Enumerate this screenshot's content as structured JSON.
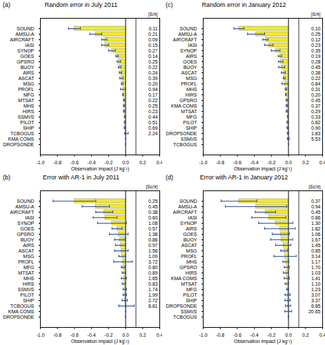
{
  "chart_data": [
    {
      "type": "bar",
      "orientation": "horizontal",
      "panel_label": "(a)",
      "title": "Random error in July 2011",
      "x_label": "Observation impact (J kg⁻¹)",
      "categories": [
        "SOUND",
        "AMSU-A",
        "AIRCRAFT",
        "IASI",
        "SYNOP",
        "GOES",
        "GPSRO",
        "BUOY",
        "AIRS",
        "ASCAT",
        "MSG",
        "PROFL",
        "MFG",
        "MTSAT",
        "MHS",
        "HIRS",
        "SSMI/S",
        "PILOT",
        "SHIP",
        "TCBOGUS",
        "KMA COMS",
        "DROPSONDE"
      ],
      "values": [
        -0.6,
        -0.35,
        -0.25,
        -0.24,
        -0.16,
        -0.1,
        -0.08,
        -0.07,
        -0.06,
        -0.05,
        -0.04,
        -0.03,
        -0.03,
        -0.02,
        -0.02,
        -0.02,
        -0.01,
        -0.01,
        -0.01,
        0.01,
        0,
        0
      ],
      "errors": [
        0.07,
        0.07,
        0.03,
        0.04,
        0.04,
        0.015,
        0.02,
        0.015,
        0.015,
        0.02,
        0.01,
        0.03,
        0.005,
        0.005,
        0.005,
        0.005,
        0.005,
        0.005,
        0.007,
        0.02,
        0,
        0
      ],
      "column_title": "|S/x̄|",
      "column_values": [
        0.11,
        0.21,
        0.09,
        0.15,
        0.27,
        0.14,
        0.25,
        0.22,
        0.24,
        0.39,
        0.2,
        0.94,
        0.17,
        0.22,
        0.25,
        0.23,
        0.44,
        0.51,
        0.69,
        2.24,
        null,
        null
      ],
      "color": "#f2e82e",
      "error_color": "#2f4f9f",
      "xlim": [
        -1.0,
        0.4
      ],
      "xticks": [
        {
          "value": -1.0,
          "label": "-1.0"
        },
        {
          "value": -0.8,
          "label": "-0.8"
        },
        {
          "value": -0.6,
          "label": "-0.6"
        },
        {
          "value": -0.4,
          "label": "-0.4"
        },
        {
          "value": -0.2,
          "label": "-0.2"
        },
        {
          "value": 0,
          "label": "0.0"
        },
        {
          "value": 0.2,
          "label": "0.2"
        },
        {
          "value": 0.4,
          "label": "0.4"
        }
      ]
    },
    {
      "type": "bar",
      "orientation": "horizontal",
      "panel_label": "(b)",
      "title": "Error with AR-1 in July 2011",
      "x_label": "Observation impact (J kg⁻¹)",
      "categories": [
        "SOUND",
        "AMSU-A",
        "AIRCRAFT",
        "IASI",
        "SYNOP",
        "GOES",
        "GPSRO",
        "BUOY",
        "AIRS",
        "ASCAT",
        "MSG",
        "PROFL",
        "MFG",
        "MTSAT",
        "MHS",
        "HIRS",
        "SSMI/S",
        "PILOT",
        "SHIP",
        "TCBOGUS",
        "KMA COMS",
        "DROPSONDE"
      ],
      "values": [
        -0.6,
        -0.35,
        -0.25,
        -0.24,
        -0.16,
        -0.1,
        -0.08,
        -0.07,
        -0.06,
        -0.05,
        -0.04,
        -0.03,
        -0.03,
        -0.02,
        -0.02,
        -0.02,
        -0.01,
        -0.01,
        -0.01,
        0.01,
        0,
        0
      ],
      "errors": [
        0.25,
        0.16,
        0.1,
        0.14,
        0.17,
        0.06,
        0.11,
        0.06,
        0.06,
        0.08,
        0.04,
        0.11,
        0.02,
        0.02,
        0.03,
        0.02,
        0.02,
        0.02,
        0.03,
        0.09,
        0,
        0
      ],
      "column_title": "|Sc/x̄|",
      "column_values": [
        0.25,
        0.45,
        0.38,
        0.6,
        1.08,
        0.57,
        1.38,
        0.86,
        0.97,
        1.56,
        1.09,
        3.72,
        0.8,
        0.89,
        1.65,
        0.83,
        1.74,
        1.99,
        2.72,
        8.81,
        null,
        null
      ],
      "color": "#f2e82e",
      "error_color": "#2f4f9f",
      "xlim": [
        -1.0,
        0.4
      ],
      "xticks": [
        {
          "value": -1.0,
          "label": "-1.0"
        },
        {
          "value": -0.8,
          "label": "-0.8"
        },
        {
          "value": -0.6,
          "label": "-0.6"
        },
        {
          "value": -0.4,
          "label": "-0.4"
        },
        {
          "value": -0.2,
          "label": "-0.2"
        },
        {
          "value": 0,
          "label": "0.0"
        },
        {
          "value": 0.2,
          "label": "0.2"
        },
        {
          "value": 0.4,
          "label": "0.4"
        }
      ]
    },
    {
      "type": "bar",
      "orientation": "horizontal",
      "panel_label": "(c)",
      "title": "Random error in January 2012",
      "x_label": "Observation impact (J kg⁻¹)",
      "categories": [
        "SOUND",
        "AMSU-A",
        "AIRCRAFT",
        "IASI",
        "SYNOP",
        "AIRS",
        "GOES",
        "BUOY",
        "ASCAT",
        "MSG",
        "PROFL",
        "MHS",
        "HIRS",
        "GPSRO",
        "KMA COMS",
        "MTSAT",
        "MFG",
        "PILOT",
        "SHIP",
        "DROPSONDE",
        "SSMI/S",
        "TCBOGUS"
      ],
      "values": [
        -0.58,
        -0.38,
        -0.27,
        -0.23,
        -0.15,
        -0.1,
        -0.09,
        -0.08,
        -0.06,
        -0.05,
        -0.04,
        -0.03,
        -0.03,
        -0.02,
        -0.02,
        -0.02,
        -0.01,
        -0.01,
        -0.01,
        -0.005,
        -0.002,
        0
      ],
      "errors": [
        0.06,
        0.1,
        0.03,
        0.05,
        0.05,
        0.02,
        0.025,
        0.036,
        0.023,
        0.011,
        0.034,
        0.009,
        0.006,
        0.009,
        0.007,
        0.006,
        0.003,
        0.008,
        0.009,
        0.009,
        0.011,
        0
      ],
      "column_title": "|S/x̄|",
      "column_values": [
        0.1,
        0.25,
        0.12,
        0.23,
        0.35,
        0.19,
        0.28,
        0.45,
        0.38,
        0.22,
        0.84,
        0.31,
        0.2,
        0.45,
        0.37,
        0.29,
        0.33,
        0.82,
        0.9,
        1.83,
        5.53,
        null
      ],
      "color": "#f2e82e",
      "error_color": "#2f4f9f",
      "xlim": [
        -1.0,
        0.4
      ],
      "xticks": [
        {
          "value": -1.0,
          "label": "-1.0"
        },
        {
          "value": -0.8,
          "label": "-0.8"
        },
        {
          "value": -0.6,
          "label": "-0.6"
        },
        {
          "value": -0.4,
          "label": "-0.4"
        },
        {
          "value": -0.2,
          "label": "-0.2"
        },
        {
          "value": 0,
          "label": "0.0"
        },
        {
          "value": 0.2,
          "label": "0.2"
        },
        {
          "value": 0.4,
          "label": "0.4"
        }
      ]
    },
    {
      "type": "bar",
      "orientation": "horizontal",
      "panel_label": "(d)",
      "title": "Error with AR-1 in January 2012",
      "x_label": "Observation impact (J kg⁻¹)",
      "categories": [
        "SOUND",
        "AMSU-A",
        "AIRCRAFT",
        "IASI",
        "SYNOP",
        "AIRS",
        "GOES",
        "BUOY",
        "ASCAT",
        "MSG",
        "PROFL",
        "MHS",
        "GPSRO",
        "HIRS",
        "KMA COMS",
        "MTSAT",
        "MFG",
        "PILOT",
        "SHIP",
        "DROPSONDE",
        "SSMI/S",
        "TCBOGUS"
      ],
      "values": [
        -0.58,
        -0.38,
        -0.27,
        -0.23,
        -0.15,
        -0.1,
        -0.09,
        -0.08,
        -0.06,
        -0.05,
        -0.04,
        -0.03,
        -0.02,
        -0.03,
        -0.02,
        -0.02,
        -0.01,
        -0.01,
        -0.01,
        -0.005,
        -0.002,
        0
      ],
      "errors": [
        0.21,
        0.36,
        0.12,
        0.2,
        0.2,
        0.18,
        0.1,
        0.13,
        0.09,
        0.04,
        0.13,
        0.035,
        0.03,
        0.03,
        0.03,
        0.02,
        0.012,
        0.03,
        0.03,
        0.03,
        0.04,
        0
      ],
      "column_title": "|Sc/x̄|",
      "column_values": [
        0.37,
        0.94,
        0.45,
        0.86,
        1.3,
        1.82,
        1.06,
        1.67,
        1.45,
        0.85,
        3.14,
        1.17,
        1.7,
        1.03,
        1.41,
        1.1,
        1.23,
        3.07,
        3.37,
        6.85,
        20.65,
        null
      ],
      "color": "#f2e82e",
      "error_color": "#2f4f9f",
      "xlim": [
        -1.0,
        0.4
      ],
      "xticks": [
        {
          "value": -1.0,
          "label": "-1.0"
        },
        {
          "value": -0.8,
          "label": "-0.8"
        },
        {
          "value": -0.6,
          "label": "-0.6"
        },
        {
          "value": -0.4,
          "label": "-0.4"
        },
        {
          "value": -0.2,
          "label": "-0.2"
        },
        {
          "value": 0,
          "label": "0.0"
        },
        {
          "value": 0.2,
          "label": "0.2"
        },
        {
          "value": 0.4,
          "label": "0.4"
        }
      ]
    }
  ]
}
